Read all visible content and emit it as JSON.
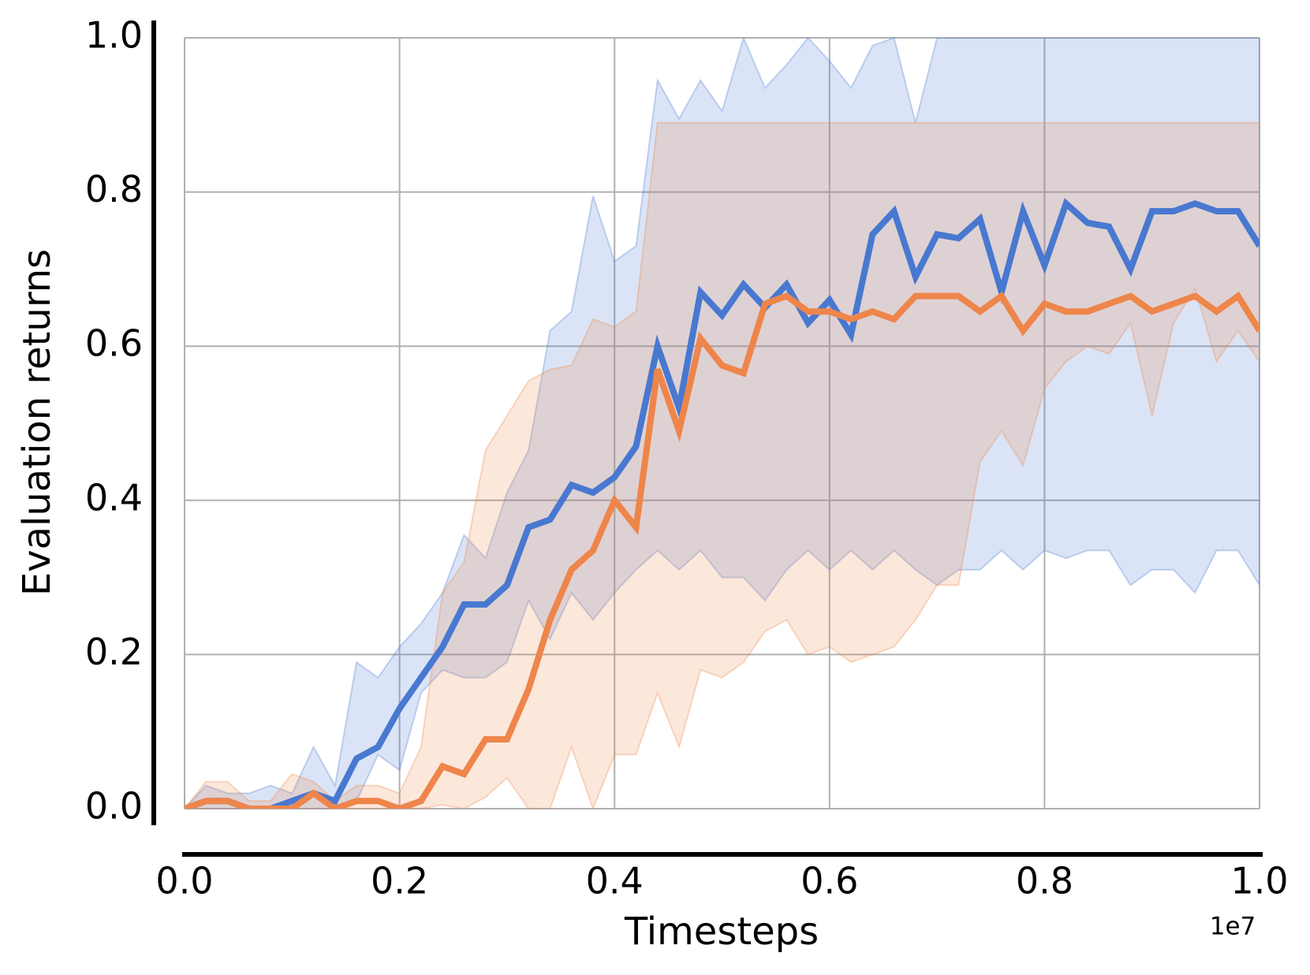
{
  "chart_data": {
    "type": "line",
    "x_label": "Timesteps",
    "y_label": "Evaluation returns",
    "x_offset_label": "1e7",
    "x": [
      0,
      0.02,
      0.04,
      0.06,
      0.08,
      0.1,
      0.12,
      0.14,
      0.16,
      0.18,
      0.2,
      0.22,
      0.24,
      0.26,
      0.28,
      0.3,
      0.32,
      0.34,
      0.36,
      0.38,
      0.4,
      0.42,
      0.44,
      0.46,
      0.48,
      0.5,
      0.52,
      0.54,
      0.56,
      0.58,
      0.6,
      0.62,
      0.64,
      0.66,
      0.68,
      0.7,
      0.72,
      0.74,
      0.76,
      0.78,
      0.8,
      0.82,
      0.84,
      0.86,
      0.88,
      0.9,
      0.92,
      0.94,
      0.96,
      0.98,
      1.0
    ],
    "series": [
      {
        "color": "#4878d0",
        "values": [
          0,
          0.01,
          0.01,
          0,
          0,
          0.01,
          0.02,
          0.01,
          0.065,
          0.08,
          0.13,
          0.17,
          0.21,
          0.265,
          0.265,
          0.29,
          0.365,
          0.375,
          0.42,
          0.41,
          0.43,
          0.47,
          0.6,
          0.52,
          0.67,
          0.64,
          0.68,
          0.65,
          0.68,
          0.63,
          0.66,
          0.615,
          0.745,
          0.775,
          0.69,
          0.745,
          0.74,
          0.765,
          0.67,
          0.775,
          0.705,
          0.785,
          0.76,
          0.755,
          0.7,
          0.775,
          0.775,
          0.785,
          0.775,
          0.775,
          0.73
        ],
        "upper": [
          0,
          0.03,
          0.02,
          0.02,
          0.03,
          0.02,
          0.08,
          0.03,
          0.19,
          0.17,
          0.21,
          0.24,
          0.28,
          0.355,
          0.325,
          0.41,
          0.465,
          0.62,
          0.645,
          0.795,
          0.71,
          0.73,
          0.945,
          0.895,
          0.945,
          0.905,
          1.0,
          0.935,
          0.965,
          1.0,
          0.97,
          0.935,
          0.99,
          1.0,
          0.89,
          1.0,
          1.0,
          1.0,
          1.0,
          1.0,
          1.0,
          1.0,
          1.0,
          1.0,
          1.0,
          1.0,
          1.0,
          1.0,
          1.0,
          1.0,
          1.0
        ],
        "lower": [
          0,
          0,
          0,
          0,
          0,
          0,
          0,
          0,
          0.01,
          0.07,
          0.05,
          0.15,
          0.18,
          0.17,
          0.17,
          0.19,
          0.27,
          0.22,
          0.28,
          0.245,
          0.28,
          0.31,
          0.335,
          0.31,
          0.335,
          0.3,
          0.3,
          0.27,
          0.31,
          0.335,
          0.31,
          0.335,
          0.31,
          0.335,
          0.31,
          0.29,
          0.31,
          0.31,
          0.335,
          0.31,
          0.335,
          0.325,
          0.335,
          0.335,
          0.29,
          0.31,
          0.31,
          0.28,
          0.335,
          0.335,
          0.29
        ]
      },
      {
        "color": "#ee854a",
        "values": [
          0,
          0.01,
          0.01,
          0,
          0,
          0,
          0.02,
          0,
          0.01,
          0.01,
          0,
          0.01,
          0.055,
          0.045,
          0.09,
          0.09,
          0.155,
          0.245,
          0.31,
          0.335,
          0.4,
          0.365,
          0.57,
          0.49,
          0.61,
          0.575,
          0.565,
          0.655,
          0.665,
          0.645,
          0.645,
          0.635,
          0.645,
          0.635,
          0.665,
          0.665,
          0.665,
          0.645,
          0.665,
          0.62,
          0.655,
          0.645,
          0.645,
          0.655,
          0.665,
          0.645,
          0.655,
          0.665,
          0.645,
          0.665,
          0.62
        ],
        "upper": [
          0,
          0.035,
          0.035,
          0.01,
          0.01,
          0.045,
          0.035,
          0.01,
          0.03,
          0.03,
          0.02,
          0.08,
          0.28,
          0.32,
          0.465,
          0.51,
          0.555,
          0.57,
          0.575,
          0.635,
          0.625,
          0.645,
          0.89,
          0.89,
          0.89,
          0.89,
          0.89,
          0.89,
          0.89,
          0.89,
          0.89,
          0.89,
          0.89,
          0.89,
          0.89,
          0.89,
          0.89,
          0.89,
          0.89,
          0.89,
          0.89,
          0.89,
          0.89,
          0.89,
          0.89,
          0.89,
          0.89,
          0.89,
          0.89,
          0.89,
          0.89
        ],
        "lower": [
          0,
          0,
          0,
          0,
          0,
          0,
          0,
          0,
          0,
          0,
          0,
          0,
          0.005,
          0,
          0.015,
          0.04,
          0,
          0,
          0.08,
          0,
          0.07,
          0.07,
          0.15,
          0.08,
          0.18,
          0.17,
          0.19,
          0.23,
          0.245,
          0.2,
          0.21,
          0.19,
          0.2,
          0.21,
          0.245,
          0.29,
          0.29,
          0.45,
          0.49,
          0.445,
          0.545,
          0.58,
          0.6,
          0.59,
          0.63,
          0.51,
          0.63,
          0.675,
          0.58,
          0.62,
          0.58
        ]
      }
    ],
    "xlim": [
      0,
      1.0
    ],
    "ylim": [
      0,
      1.0
    ],
    "xticks": [
      {
        "value": 0,
        "label": "0.0"
      },
      0.2,
      0.4,
      0.6,
      0.8,
      {
        "value": 1,
        "label": "1.0"
      }
    ],
    "yticks": [
      {
        "value": 0,
        "label": "0.0"
      },
      0.2,
      0.4,
      0.6,
      0.8,
      {
        "value": 1,
        "label": "1.0"
      }
    ],
    "grid": true
  }
}
